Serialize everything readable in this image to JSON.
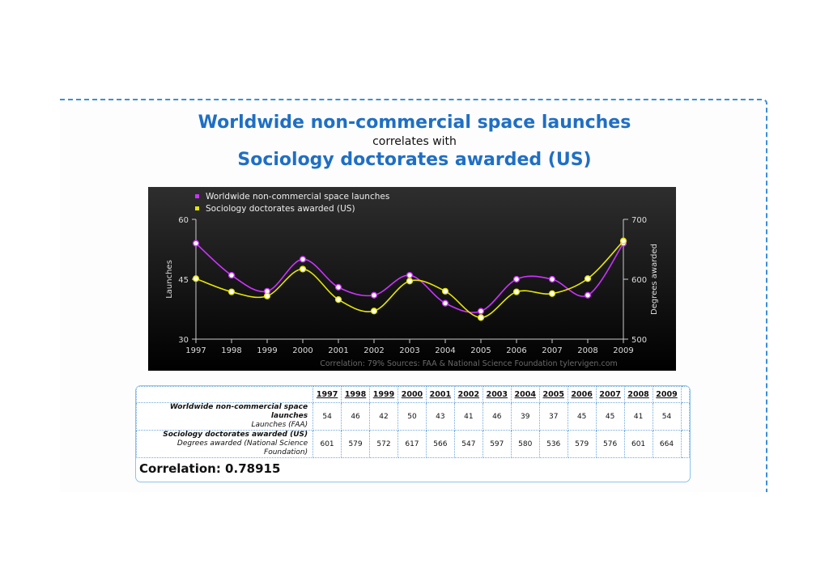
{
  "title_line1": "Worldwide non-commercial space launches",
  "title_line2": "correlates with",
  "title_line3": "Sociology doctorates awarded (US)",
  "chart_data": {
    "type": "line",
    "x": [
      "1997",
      "1998",
      "1999",
      "2000",
      "2001",
      "2002",
      "2003",
      "2004",
      "2005",
      "2006",
      "2007",
      "2008",
      "2009"
    ],
    "series": [
      {
        "name": "Worldwide non-commercial space launches",
        "axis": "left",
        "color": "#cc33ff",
        "values": [
          54,
          46,
          42,
          50,
          43,
          41,
          46,
          39,
          37,
          45,
          45,
          41,
          54
        ]
      },
      {
        "name": "Sociology doctorates awarded (US)",
        "axis": "right",
        "color": "#e6e600",
        "values": [
          601,
          579,
          572,
          617,
          566,
          547,
          597,
          580,
          536,
          579,
          576,
          601,
          664
        ]
      }
    ],
    "ylabel_left": "Launches",
    "ylabel_right": "Degrees awarded",
    "ylim_left": [
      30,
      60
    ],
    "ylim_right": [
      500,
      700
    ],
    "yticks_left": [
      "30",
      "45",
      "60"
    ],
    "yticks_right": [
      "500",
      "600",
      "700"
    ],
    "legend": "top-left",
    "footer": "Correlation: 79%    Sources: FAA & National Science Foundation    tylervigen.com"
  },
  "table": {
    "row1_label": "Worldwide non-commercial space launches",
    "row1_sub": "Launches (FAA)",
    "row2_label": "Sociology doctorates awarded (US)",
    "row2_sub": "Degrees awarded (National Science Foundation)"
  },
  "correlation_text": "Correlation: 0.78915"
}
